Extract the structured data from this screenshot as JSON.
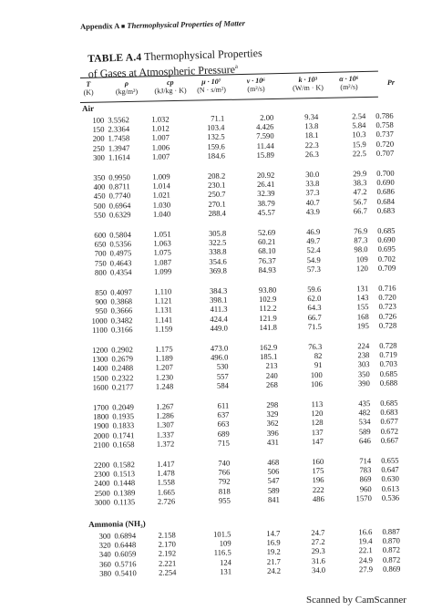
{
  "header": {
    "appendix": "Appendix A",
    "separator": "■",
    "section_title": "Thermophysical Properties of Matter"
  },
  "table": {
    "label": "TABLE A.4",
    "title_line1": "Thermophysical Properties",
    "title_line2": "of Gases at Atmospheric Pressure",
    "title_footnote": "a",
    "columns": [
      {
        "symbol": "T",
        "unit": "(K)"
      },
      {
        "symbol": "ρ",
        "unit": "(kg/m³)"
      },
      {
        "symbol": "cp",
        "unit": "(kJ/kg · K)"
      },
      {
        "symbol": "μ · 10⁷",
        "unit": "(N · s/m²)"
      },
      {
        "symbol": "ν · 10⁶",
        "unit": "(m²/s)"
      },
      {
        "symbol": "k · 10³",
        "unit": "(W/m · K)"
      },
      {
        "symbol": "α · 10⁶",
        "unit": "(m²/s)"
      },
      {
        "symbol": "Pr",
        "unit": ""
      }
    ],
    "groups": [
      {
        "name": "Air",
        "blocks": [
          [
            [
              "100",
              "3.5562",
              "1.032",
              "71.1",
              "2.00",
              "9.34",
              "2.54",
              "0.786"
            ],
            [
              "150",
              "2.3364",
              "1.012",
              "103.4",
              "4.426",
              "13.8",
              "5.84",
              "0.758"
            ],
            [
              "200",
              "1.7458",
              "1.007",
              "132.5",
              "7.590",
              "18.1",
              "10.3",
              "0.737"
            ],
            [
              "250",
              "1.3947",
              "1.006",
              "159.6",
              "11.44",
              "22.3",
              "15.9",
              "0.720"
            ],
            [
              "300",
              "1.1614",
              "1.007",
              "184.6",
              "15.89",
              "26.3",
              "22.5",
              "0.707"
            ]
          ],
          [
            [
              "350",
              "0.9950",
              "1.009",
              "208.2",
              "20.92",
              "30.0",
              "29.9",
              "0.700"
            ],
            [
              "400",
              "0.8711",
              "1.014",
              "230.1",
              "26.41",
              "33.8",
              "38.3",
              "0.690"
            ],
            [
              "450",
              "0.7740",
              "1.021",
              "250.7",
              "32.39",
              "37.3",
              "47.2",
              "0.686"
            ],
            [
              "500",
              "0.6964",
              "1.030",
              "270.1",
              "38.79",
              "40.7",
              "56.7",
              "0.684"
            ],
            [
              "550",
              "0.6329",
              "1.040",
              "288.4",
              "45.57",
              "43.9",
              "66.7",
              "0.683"
            ]
          ],
          [
            [
              "600",
              "0.5804",
              "1.051",
              "305.8",
              "52.69",
              "46.9",
              "76.9",
              "0.685"
            ],
            [
              "650",
              "0.5356",
              "1.063",
              "322.5",
              "60.21",
              "49.7",
              "87.3",
              "0.690"
            ],
            [
              "700",
              "0.4975",
              "1.075",
              "338.8",
              "68.10",
              "52.4",
              "98.0",
              "0.695"
            ],
            [
              "750",
              "0.4643",
              "1.087",
              "354.6",
              "76.37",
              "54.9",
              "109",
              "0.702"
            ],
            [
              "800",
              "0.4354",
              "1.099",
              "369.8",
              "84.93",
              "57.3",
              "120",
              "0.709"
            ]
          ],
          [
            [
              "850",
              "0.4097",
              "1.110",
              "384.3",
              "93.80",
              "59.6",
              "131",
              "0.716"
            ],
            [
              "900",
              "0.3868",
              "1.121",
              "398.1",
              "102.9",
              "62.0",
              "143",
              "0.720"
            ],
            [
              "950",
              "0.3666",
              "1.131",
              "411.3",
              "112.2",
              "64.3",
              "155",
              "0.723"
            ],
            [
              "1000",
              "0.3482",
              "1.141",
              "424.4",
              "121.9",
              "66.7",
              "168",
              "0.726"
            ],
            [
              "1100",
              "0.3166",
              "1.159",
              "449.0",
              "141.8",
              "71.5",
              "195",
              "0.728"
            ]
          ],
          [
            [
              "1200",
              "0.2902",
              "1.175",
              "473.0",
              "162.9",
              "76.3",
              "224",
              "0.728"
            ],
            [
              "1300",
              "0.2679",
              "1.189",
              "496.0",
              "185.1",
              "82",
              "238",
              "0.719"
            ],
            [
              "1400",
              "0.2488",
              "1.207",
              "530",
              "213",
              "91",
              "303",
              "0.703"
            ],
            [
              "1500",
              "0.2322",
              "1.230",
              "557",
              "240",
              "100",
              "350",
              "0.685"
            ],
            [
              "1600",
              "0.2177",
              "1.248",
              "584",
              "268",
              "106",
              "390",
              "0.688"
            ]
          ],
          [
            [
              "1700",
              "0.2049",
              "1.267",
              "611",
              "298",
              "113",
              "435",
              "0.685"
            ],
            [
              "1800",
              "0.1935",
              "1.286",
              "637",
              "329",
              "120",
              "482",
              "0.683"
            ],
            [
              "1900",
              "0.1833",
              "1.307",
              "663",
              "362",
              "128",
              "534",
              "0.677"
            ],
            [
              "2000",
              "0.1741",
              "1.337",
              "689",
              "396",
              "137",
              "589",
              "0.672"
            ],
            [
              "2100",
              "0.1658",
              "1.372",
              "715",
              "431",
              "147",
              "646",
              "0.667"
            ]
          ],
          [
            [
              "2200",
              "0.1582",
              "1.417",
              "740",
              "468",
              "160",
              "714",
              "0.655"
            ],
            [
              "2300",
              "0.1513",
              "1.478",
              "766",
              "506",
              "175",
              "783",
              "0.647"
            ],
            [
              "2400",
              "0.1448",
              "1.558",
              "792",
              "547",
              "196",
              "869",
              "0.630"
            ],
            [
              "2500",
              "0.1389",
              "1.665",
              "818",
              "589",
              "222",
              "960",
              "0.613"
            ],
            [
              "3000",
              "0.1135",
              "2.726",
              "955",
              "841",
              "486",
              "1570",
              "0.536"
            ]
          ]
        ]
      },
      {
        "name": "Ammonia (NH₃)",
        "blocks": [
          [
            [
              "300",
              "0.6894",
              "2.158",
              "101.5",
              "14.7",
              "24.7",
              "16.6",
              "0.887"
            ],
            [
              "320",
              "0.6448",
              "2.170",
              "109",
              "16.9",
              "27.2",
              "19.4",
              "0.870"
            ],
            [
              "340",
              "0.6059",
              "2.192",
              "116.5",
              "19.2",
              "29.3",
              "22.1",
              "0.872"
            ],
            [
              "360",
              "0.5716",
              "2.221",
              "124",
              "21.7",
              "31.6",
              "24.9",
              "0.872"
            ],
            [
              "380",
              "0.5410",
              "2.254",
              "131",
              "24.2",
              "34.0",
              "27.9",
              "0.869"
            ]
          ]
        ]
      }
    ]
  },
  "footer": {
    "scanner_mark": "Scanned by CamScanner"
  }
}
